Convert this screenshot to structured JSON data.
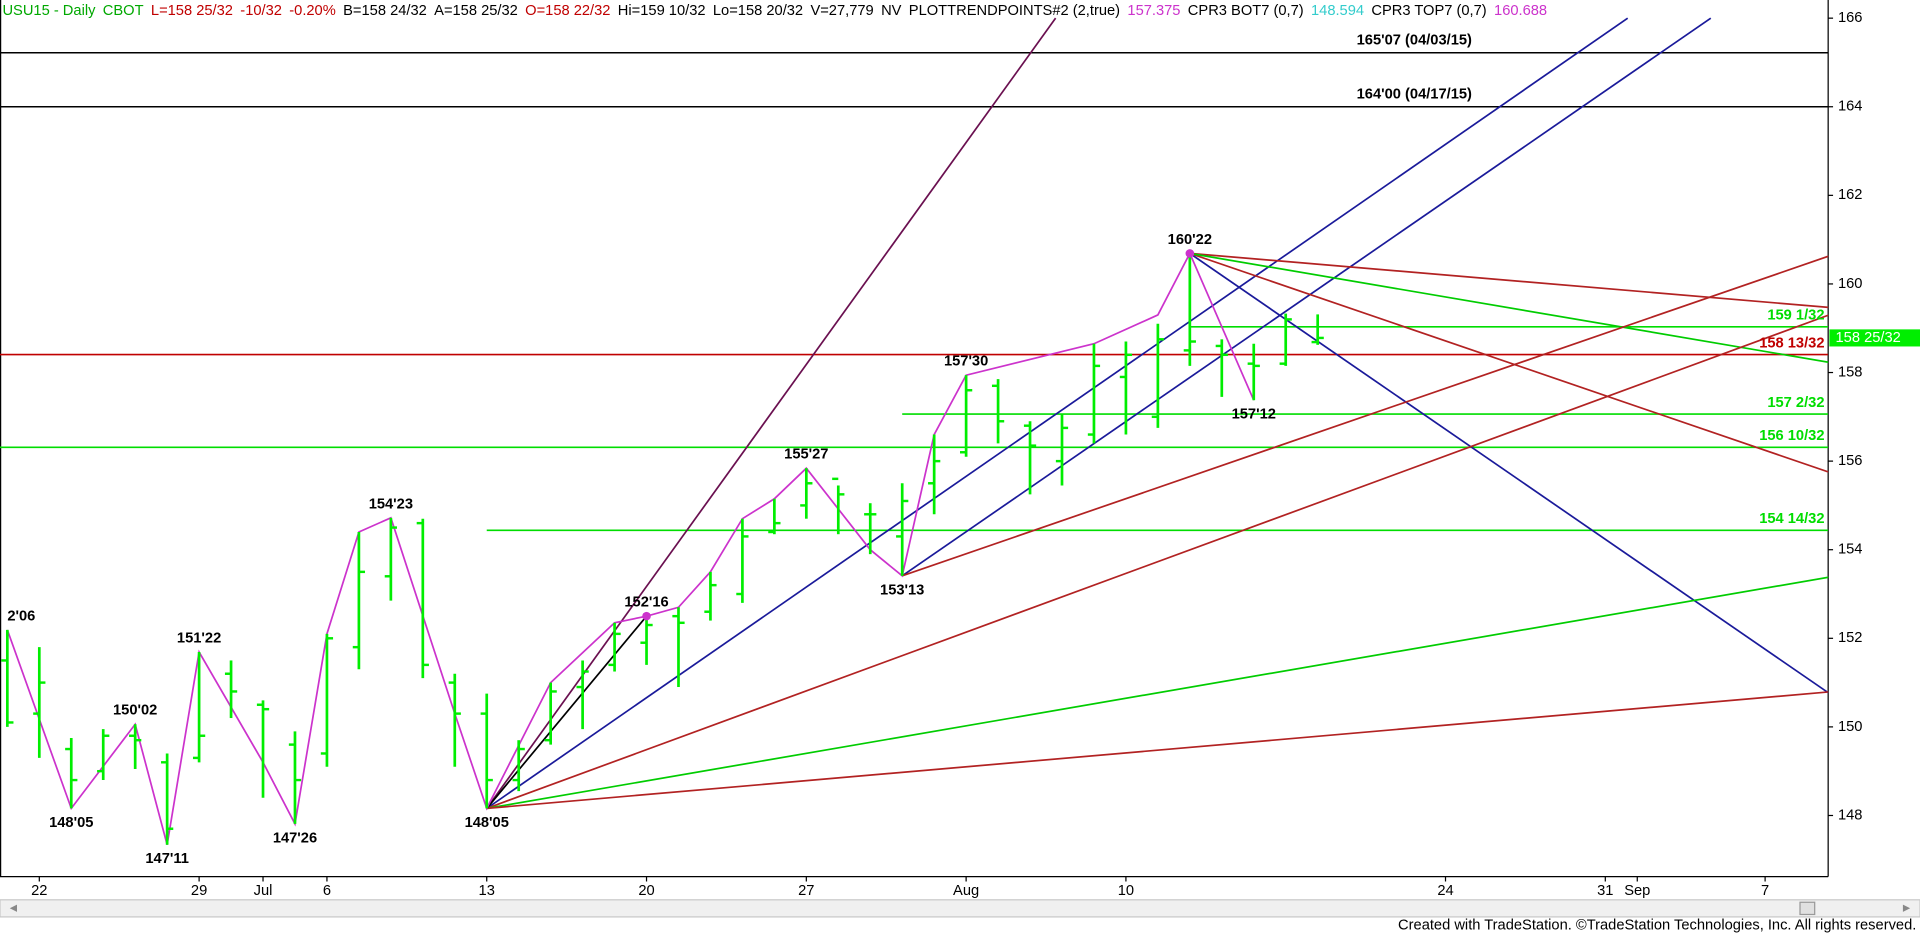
{
  "chart_data": {
    "type": "ohlc",
    "header": [
      {
        "text": "USU15 - Daily",
        "color": "#00a800"
      },
      {
        "text": "CBOT",
        "color": "#00a800"
      },
      {
        "text": "L=158 25/32",
        "color": "#c00000"
      },
      {
        "text": "-10/32",
        "color": "#c00000"
      },
      {
        "text": "-0.20%",
        "color": "#c00000"
      },
      {
        "text": "B=158 24/32",
        "color": "#000000"
      },
      {
        "text": "A=158 25/32",
        "color": "#000000"
      },
      {
        "text": "O=158 22/32",
        "color": "#c00000"
      },
      {
        "text": "Hi=159 10/32",
        "color": "#000000"
      },
      {
        "text": "Lo=158 20/32",
        "color": "#000000"
      },
      {
        "text": "V=27,779",
        "color": "#000000"
      },
      {
        "text": "NV",
        "color": "#000000"
      },
      {
        "text": "PLOTTRENDPOINTS#2 (2,true)",
        "color": "#000000"
      },
      {
        "text": "157.375",
        "color": "#cc33cc"
      },
      {
        "text": "CPR3 BOT7 (0,7)",
        "color": "#000000"
      },
      {
        "text": "148.594",
        "color": "#33cccc"
      },
      {
        "text": "CPR3 TOP7 (0,7)",
        "color": "#000000"
      },
      {
        "text": "160.688",
        "color": "#cc33cc"
      }
    ],
    "categories": [
      null,
      "22",
      null,
      null,
      null,
      null,
      "29",
      null,
      "Jul",
      null,
      "6",
      null,
      null,
      null,
      null,
      "13",
      null,
      null,
      null,
      null,
      "20",
      null,
      null,
      null,
      null,
      "27",
      null,
      null,
      null,
      null,
      "Aug",
      null,
      null,
      null,
      null,
      "10",
      null,
      null,
      null,
      null,
      null,
      null,
      null,
      null,
      null,
      "24",
      null,
      null,
      null,
      null,
      "31",
      "Sep",
      null,
      null,
      null,
      "7",
      null,
      null
    ],
    "open": [
      151.5,
      150.3,
      149.5,
      149.0,
      149.8,
      149.2,
      149.3,
      151.2,
      150.5,
      149.6,
      149.4,
      151.8,
      153.4,
      154.6,
      151.0,
      150.3,
      148.8,
      149.7,
      150.9,
      151.4,
      151.9,
      152.5,
      152.6,
      153.0,
      154.4,
      155.0,
      155.6,
      154.8,
      154.3,
      155.5,
      156.2,
      157.7,
      156.8,
      156.0,
      156.6,
      157.9,
      157.0,
      158.5,
      158.6,
      158.2,
      158.2,
      158.6875,
      null,
      null,
      null,
      null,
      null,
      null,
      null,
      null,
      null,
      null,
      null,
      null,
      null,
      null,
      null,
      null
    ],
    "high": [
      152.19,
      151.8,
      149.75,
      149.95,
      150.06,
      149.4,
      151.69,
      151.5,
      150.6,
      149.9,
      152.1,
      154.4,
      154.72,
      154.7,
      151.2,
      150.75,
      149.7,
      151.0,
      151.5,
      152.35,
      152.5,
      152.7,
      153.5,
      154.7,
      155.15,
      155.84,
      155.45,
      155.05,
      155.5,
      156.6,
      157.94,
      157.85,
      156.9,
      157.05,
      158.65,
      158.7,
      159.1,
      160.69,
      158.75,
      158.65,
      159.33,
      159.3125,
      null,
      null,
      null,
      null,
      null,
      null,
      null,
      null,
      null,
      null,
      null,
      null,
      null,
      null,
      null,
      null
    ],
    "low": [
      150.0,
      149.3,
      148.16,
      148.8,
      149.05,
      147.34,
      149.2,
      150.2,
      148.4,
      147.81,
      149.1,
      151.3,
      152.85,
      151.1,
      149.1,
      148.16,
      148.55,
      149.6,
      149.95,
      151.25,
      151.4,
      150.9,
      152.4,
      152.8,
      154.35,
      154.7,
      154.35,
      153.9,
      153.41,
      154.8,
      156.1,
      156.4,
      155.25,
      155.45,
      156.4,
      156.6,
      156.75,
      158.15,
      157.45,
      157.375,
      158.15,
      158.625,
      null,
      null,
      null,
      null,
      null,
      null,
      null,
      null,
      null,
      null,
      null,
      null,
      null,
      null,
      null,
      null
    ],
    "close": [
      150.1,
      151.0,
      148.8,
      149.8,
      149.7,
      147.7,
      149.8,
      150.8,
      150.4,
      148.8,
      152.0,
      153.5,
      154.5,
      151.4,
      150.3,
      148.8,
      149.5,
      150.8,
      151.25,
      152.1,
      152.3,
      152.35,
      153.2,
      154.3,
      154.6,
      155.5,
      155.25,
      154.8,
      155.1,
      156.0,
      157.6,
      156.9,
      156.35,
      156.75,
      158.15,
      158.4,
      158.75,
      158.7,
      158.4,
      158.15,
      159.2,
      158.78125,
      null,
      null,
      null,
      null,
      null,
      null,
      null,
      null,
      null,
      null,
      null,
      null,
      null,
      null,
      null,
      null
    ],
    "color": "#00ee00",
    "ylim": [
      146.62,
      166.41
    ],
    "yticks": [
      148,
      150,
      152,
      154,
      156,
      158,
      160,
      162,
      164,
      166
    ],
    "last": {
      "value": 158.78125,
      "label": "158 25/32",
      "color": "#00ee00"
    },
    "levels": [
      {
        "value": 165.21875,
        "label": "165'07 (04/03/15)",
        "color": "#000000",
        "from": 0,
        "label_position": "center"
      },
      {
        "value": 164.0,
        "label": "164'00 (04/17/15)",
        "color": "#000000",
        "from": 0,
        "label_position": "center"
      },
      {
        "value": 159.03125,
        "label": "159 1/32",
        "color": "#00dd00",
        "from": 37,
        "label_position": "right"
      },
      {
        "value": 158.40625,
        "label": "158 13/32",
        "color": "#c00000",
        "from": 0,
        "label_position": "right"
      },
      {
        "value": 157.0625,
        "label": "157 2/32",
        "color": "#00dd00",
        "from": 28,
        "label_position": "right"
      },
      {
        "value": 156.3125,
        "label": "156 10/32",
        "color": "#00dd00",
        "from": 0,
        "label_position": "right"
      },
      {
        "value": 154.4375,
        "label": "154 14/32",
        "color": "#00dd00",
        "from": 15,
        "label_position": "right"
      }
    ],
    "trendlines": [
      {
        "color": "#6a1050",
        "x": [
          15,
          32.8
        ],
        "values": [
          148.16,
          166.0
        ]
      },
      {
        "color": "#1a1a9a",
        "x": [
          15,
          50.7
        ],
        "values": [
          148.16,
          166.0
        ]
      },
      {
        "color": "#1a1a9a",
        "x": [
          28,
          53.3
        ],
        "values": [
          153.41,
          166.0
        ]
      },
      {
        "color": "#1a1a9a",
        "x": [
          37,
          57
        ],
        "values": [
          160.69,
          150.76
        ]
      },
      {
        "color": "#b22222",
        "x": [
          37,
          57
        ],
        "values": [
          160.69,
          159.47
        ]
      },
      {
        "color": "#b22222",
        "x": [
          37,
          57
        ],
        "values": [
          160.69,
          155.75
        ]
      },
      {
        "color": "#00cc00",
        "x": [
          37,
          57
        ],
        "values": [
          160.69,
          158.23
        ]
      },
      {
        "color": "#b22222",
        "x": [
          28,
          57
        ],
        "values": [
          153.41,
          160.63
        ]
      },
      {
        "color": "#b22222",
        "x": [
          15,
          57
        ],
        "values": [
          148.16,
          159.3
        ]
      },
      {
        "color": "#00cc00",
        "x": [
          15,
          57
        ],
        "values": [
          148.16,
          153.38
        ]
      },
      {
        "color": "#b22222",
        "x": [
          15,
          57
        ],
        "values": [
          148.16,
          150.79
        ]
      },
      {
        "color": "#000000",
        "x": [
          15,
          20
        ],
        "values": [
          148.16,
          152.5
        ]
      }
    ],
    "zigzag": {
      "color": "#cc33cc",
      "x": [
        0,
        2,
        4,
        5,
        6,
        8,
        9,
        10,
        11,
        12,
        14,
        15,
        17,
        19,
        20,
        21,
        22,
        23,
        24,
        25,
        27,
        28,
        29,
        30,
        34,
        36,
        37,
        39
      ],
      "values": [
        152.19,
        148.16,
        150.06,
        147.34,
        151.69,
        149.2,
        147.81,
        152.1,
        154.4,
        154.72,
        150.3,
        148.16,
        151.0,
        152.35,
        152.5,
        152.7,
        153.5,
        154.7,
        155.15,
        155.84,
        154.0,
        153.41,
        156.6,
        157.94,
        158.65,
        159.3,
        160.69,
        157.375
      ]
    },
    "dots": [
      {
        "x": 20,
        "value": 152.5,
        "color": "#cc33cc"
      },
      {
        "x": 37,
        "value": 160.69,
        "color": "#cc33cc"
      }
    ],
    "pivots": [
      {
        "label": "2'06",
        "x": 0,
        "value": 152.19,
        "pos": "above"
      },
      {
        "label": "148'05",
        "x": 2,
        "value": 148.16,
        "pos": "below"
      },
      {
        "label": "150'02",
        "x": 4,
        "value": 150.06,
        "pos": "above"
      },
      {
        "label": "147'11",
        "x": 5,
        "value": 147.34,
        "pos": "below"
      },
      {
        "label": "151'22",
        "x": 6,
        "value": 151.69,
        "pos": "above"
      },
      {
        "label": "147'26",
        "x": 9,
        "value": 147.81,
        "pos": "below"
      },
      {
        "label": "154'23",
        "x": 12,
        "value": 154.72,
        "pos": "above"
      },
      {
        "label": "148'05",
        "x": 15,
        "value": 148.16,
        "pos": "below"
      },
      {
        "label": "152'16",
        "x": 20,
        "value": 152.5,
        "pos": "above"
      },
      {
        "label": "155'27",
        "x": 25,
        "value": 155.84,
        "pos": "above"
      },
      {
        "label": "153'13",
        "x": 28,
        "value": 153.41,
        "pos": "below"
      },
      {
        "label": "157'30",
        "x": 30,
        "value": 157.94,
        "pos": "above"
      },
      {
        "label": "160'22",
        "x": 37,
        "value": 160.69,
        "pos": "above"
      },
      {
        "label": "157'12",
        "x": 39,
        "value": 157.375,
        "pos": "below"
      }
    ],
    "footer": "Created with TradeStation. ©TradeStation Technologies, Inc. All rights reserved."
  }
}
